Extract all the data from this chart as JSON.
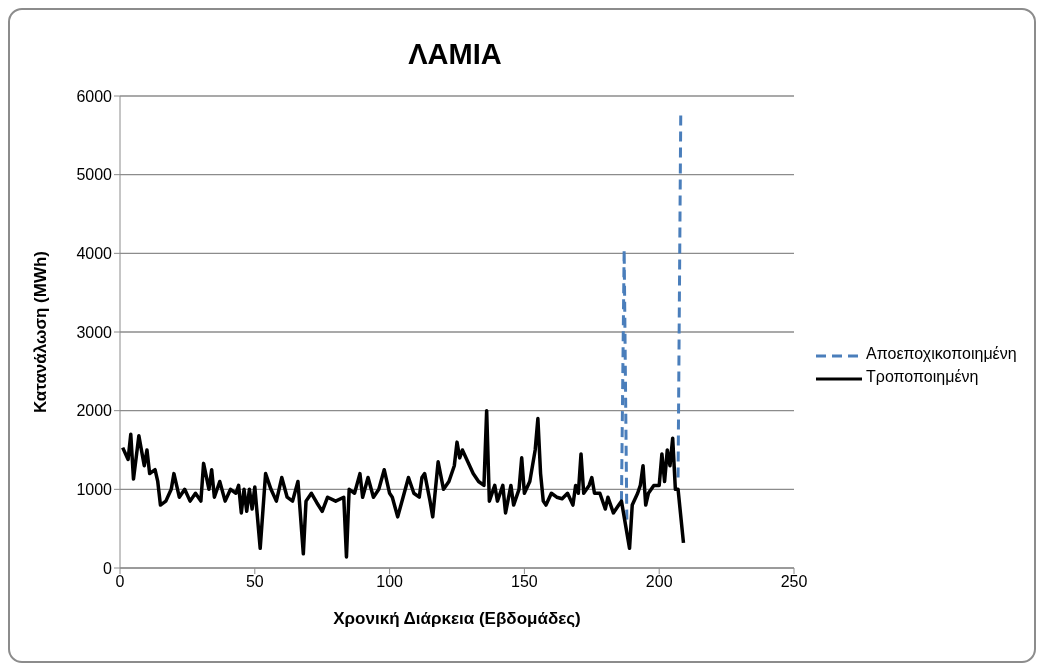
{
  "chart_data": {
    "type": "line",
    "title": "ΛΑΜΙΑ",
    "xlabel": "Χρονική Διάρκεια (Εβδομάδες)",
    "ylabel": "Κατανάλωση (MWh)",
    "xlim": [
      0,
      250
    ],
    "xticks": [
      0,
      50,
      100,
      150,
      200,
      250
    ],
    "ylim": [
      0,
      6000
    ],
    "yticks": [
      0,
      1000,
      2000,
      3000,
      4000,
      5000,
      6000
    ],
    "grid": "y",
    "legend": "right",
    "marker": "none",
    "series": [
      {
        "name": "Αποεποχικοποιημένη",
        "color": "#4a7ebb",
        "line_style": "dashed",
        "x": [
          186,
          187,
          188,
          198,
          207,
          208
        ],
        "values": [
          850,
          4050,
          600,
          null,
          1150,
          5800
        ]
      },
      {
        "name": "Τροποποιημένη",
        "color": "#000000",
        "line_style": "solid",
        "x": [
          1,
          3,
          4,
          5,
          7,
          9,
          10,
          11,
          13,
          14,
          15,
          17,
          19,
          20,
          22,
          24,
          26,
          28,
          30,
          31,
          33,
          34,
          35,
          37,
          39,
          41,
          43,
          44,
          45,
          46,
          47,
          48,
          49,
          50,
          52,
          54,
          56,
          58,
          60,
          62,
          64,
          66,
          68,
          69,
          71,
          73,
          75,
          77,
          80,
          83,
          84,
          85,
          87,
          89,
          90,
          92,
          94,
          96,
          98,
          100,
          101,
          103,
          105,
          107,
          109,
          111,
          112,
          113,
          115,
          116,
          117,
          118,
          120,
          122,
          124,
          125,
          126,
          127,
          129,
          131,
          133,
          135,
          136,
          137,
          139,
          140,
          142,
          143,
          145,
          146,
          148,
          149,
          150,
          152,
          154,
          155,
          156,
          157,
          158,
          160,
          162,
          164,
          166,
          168,
          169,
          170,
          171,
          172,
          174,
          175,
          176,
          178,
          180,
          181,
          183,
          185,
          186,
          188,
          189,
          190,
          192,
          193,
          194,
          195,
          196,
          198,
          200,
          201,
          202,
          203,
          204,
          205,
          206,
          207,
          209
        ],
        "values": [
          1530,
          1380,
          1700,
          1130,
          1680,
          1300,
          1500,
          1200,
          1250,
          1100,
          800,
          850,
          1000,
          1200,
          900,
          1000,
          850,
          950,
          850,
          1330,
          1000,
          1250,
          900,
          1100,
          850,
          1000,
          950,
          1050,
          700,
          1000,
          720,
          1000,
          750,
          1030,
          250,
          1200,
          1000,
          850,
          1150,
          900,
          850,
          1100,
          180,
          850,
          950,
          830,
          720,
          900,
          850,
          900,
          140,
          1000,
          950,
          1200,
          900,
          1150,
          900,
          1000,
          1250,
          950,
          900,
          650,
          900,
          1150,
          950,
          900,
          1150,
          1200,
          850,
          650,
          1000,
          1350,
          1000,
          1100,
          1300,
          1600,
          1400,
          1500,
          1350,
          1200,
          1100,
          1050,
          2000,
          850,
          1050,
          850,
          1050,
          700,
          1050,
          800,
          1000,
          1400,
          950,
          1100,
          1500,
          1900,
          1200,
          850,
          800,
          950,
          900,
          880,
          950,
          800,
          1050,
          950,
          1450,
          950,
          1050,
          1150,
          950,
          950,
          750,
          900,
          700,
          800,
          850,
          450,
          250,
          800,
          950,
          1050,
          1300,
          800,
          950,
          1050,
          1050,
          1450,
          1100,
          1500,
          1300,
          1650,
          1000,
          1000,
          320
        ]
      }
    ]
  }
}
